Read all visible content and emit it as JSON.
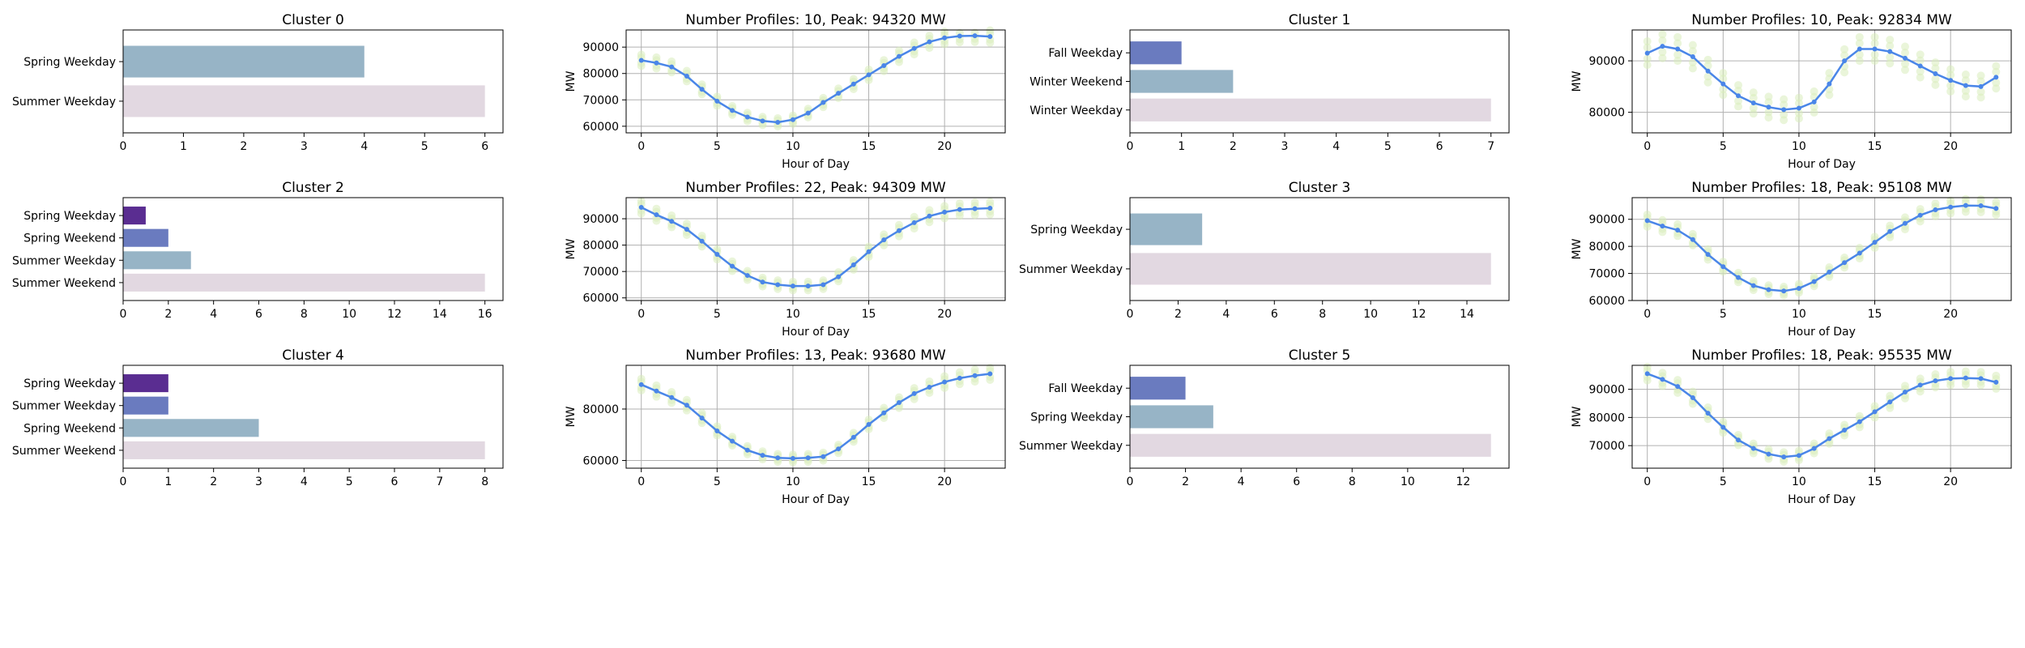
{
  "colors": {
    "bar": [
      "#5a2d91",
      "#6a7bbf",
      "#97b4c6",
      "#e2d8e1"
    ],
    "line": "#4a86e8",
    "scatter": "#d8ecbc",
    "grid": "#b0b0b0",
    "axis": "#000000"
  },
  "chart_data": [
    {
      "type": "bar",
      "orientation": "horizontal",
      "title": "Cluster 0",
      "categories": [
        "Spring Weekday",
        "Summer Weekday"
      ],
      "values": [
        4,
        6
      ],
      "color_index": [
        2,
        3
      ],
      "xlim": [
        0,
        6.3
      ],
      "xticks": [
        0,
        1,
        2,
        3,
        4,
        5,
        6
      ],
      "grid": false
    },
    {
      "type": "line",
      "title": "Number Profiles: 10, Peak: 94320 MW",
      "xlabel": "Hour of Day",
      "ylabel": "MW",
      "x": [
        0,
        1,
        2,
        3,
        4,
        5,
        6,
        7,
        8,
        9,
        10,
        11,
        12,
        13,
        14,
        15,
        16,
        17,
        18,
        19,
        20,
        21,
        22,
        23
      ],
      "y": [
        85000,
        84000,
        82500,
        79000,
        74000,
        69500,
        66000,
        63500,
        62000,
        61500,
        62500,
        65000,
        69000,
        72500,
        76000,
        79500,
        83000,
        86500,
        89500,
        92000,
        93500,
        94200,
        94320,
        94000
      ],
      "xlim": [
        -1,
        24
      ],
      "ylim": [
        57500,
        96500
      ],
      "xticks": [
        0,
        5,
        10,
        15,
        20
      ],
      "yticks": [
        60000,
        70000,
        80000,
        90000
      ],
      "grid": true
    },
    {
      "type": "bar",
      "orientation": "horizontal",
      "title": "Cluster 1",
      "categories": [
        "Fall Weekday",
        "Winter Weekend",
        "Winter Weekday"
      ],
      "values": [
        1,
        2,
        7
      ],
      "color_index": [
        1,
        2,
        3
      ],
      "xlim": [
        0,
        7.35
      ],
      "xticks": [
        0,
        1,
        2,
        3,
        4,
        5,
        6,
        7
      ],
      "grid": false
    },
    {
      "type": "line",
      "title": "Number Profiles: 10, Peak: 92834 MW",
      "xlabel": "Hour of Day",
      "ylabel": "MW",
      "x": [
        0,
        1,
        2,
        3,
        4,
        5,
        6,
        7,
        8,
        9,
        10,
        11,
        12,
        13,
        14,
        15,
        16,
        17,
        18,
        19,
        20,
        21,
        22,
        23
      ],
      "y": [
        91500,
        92834,
        92300,
        90800,
        88000,
        85500,
        83200,
        81800,
        81000,
        80500,
        80800,
        82000,
        85500,
        90000,
        92300,
        92300,
        91800,
        90500,
        89000,
        87500,
        86200,
        85200,
        85000,
        86800
      ],
      "xlim": [
        -1,
        24
      ],
      "ylim": [
        76000,
        96000
      ],
      "xticks": [
        0,
        5,
        10,
        15,
        20
      ],
      "yticks": [
        80000,
        90000
      ],
      "grid": true
    },
    {
      "type": "bar",
      "orientation": "horizontal",
      "title": "Cluster 2",
      "categories": [
        "Spring Weekday",
        "Spring Weekend",
        "Summer Weekday",
        "Summer Weekend"
      ],
      "values": [
        1,
        2,
        3,
        16
      ],
      "color_index": [
        0,
        1,
        2,
        3
      ],
      "xlim": [
        0,
        16.8
      ],
      "xticks": [
        0,
        2,
        4,
        6,
        8,
        10,
        12,
        14,
        16
      ],
      "grid": false
    },
    {
      "type": "line",
      "title": "Number Profiles: 22, Peak: 94309 MW",
      "xlabel": "Hour of Day",
      "ylabel": "MW",
      "x": [
        0,
        1,
        2,
        3,
        4,
        5,
        6,
        7,
        8,
        9,
        10,
        11,
        12,
        13,
        14,
        15,
        16,
        17,
        18,
        19,
        20,
        21,
        22,
        23
      ],
      "y": [
        94309,
        91500,
        89000,
        86000,
        81500,
        76500,
        72000,
        68500,
        66000,
        65000,
        64500,
        64500,
        65000,
        68000,
        72500,
        77500,
        82000,
        85500,
        88500,
        91000,
        92500,
        93500,
        93800,
        94000
      ],
      "xlim": [
        -1,
        24
      ],
      "ylim": [
        59000,
        98000
      ],
      "xticks": [
        0,
        5,
        10,
        15,
        20
      ],
      "yticks": [
        60000,
        70000,
        80000,
        90000
      ],
      "grid": true
    },
    {
      "type": "bar",
      "orientation": "horizontal",
      "title": "Cluster 3",
      "categories": [
        "Spring Weekday",
        "Summer Weekday"
      ],
      "values": [
        3,
        15
      ],
      "color_index": [
        2,
        3
      ],
      "xlim": [
        0,
        15.75
      ],
      "xticks": [
        0,
        2,
        4,
        6,
        8,
        10,
        12,
        14
      ],
      "grid": false
    },
    {
      "type": "line",
      "title": "Number Profiles: 18, Peak: 95108 MW",
      "xlabel": "Hour of Day",
      "ylabel": "MW",
      "x": [
        0,
        1,
        2,
        3,
        4,
        5,
        6,
        7,
        8,
        9,
        10,
        11,
        12,
        13,
        14,
        15,
        16,
        17,
        18,
        19,
        20,
        21,
        22,
        23
      ],
      "y": [
        89500,
        87500,
        86000,
        82500,
        77000,
        72500,
        68500,
        65500,
        64000,
        63500,
        64500,
        67000,
        70500,
        74000,
        77500,
        81500,
        85500,
        88500,
        91500,
        93500,
        94500,
        95108,
        95000,
        94000
      ],
      "xlim": [
        -1,
        24
      ],
      "ylim": [
        60000,
        98000
      ],
      "xticks": [
        0,
        5,
        10,
        15,
        20
      ],
      "yticks": [
        60000,
        70000,
        80000,
        90000
      ],
      "grid": true
    },
    {
      "type": "bar",
      "orientation": "horizontal",
      "title": "Cluster 4",
      "categories": [
        "Spring Weekday",
        "Summer Weekday",
        "Spring Weekend",
        "Summer Weekend"
      ],
      "values": [
        1,
        1,
        3,
        8
      ],
      "color_index": [
        0,
        1,
        2,
        3
      ],
      "xlim": [
        0,
        8.4
      ],
      "xticks": [
        0,
        1,
        2,
        3,
        4,
        5,
        6,
        7,
        8
      ],
      "grid": false
    },
    {
      "type": "line",
      "title": "Number Profiles: 13, Peak: 93680 MW",
      "xlabel": "Hour of Day",
      "ylabel": "MW",
      "x": [
        0,
        1,
        2,
        3,
        4,
        5,
        6,
        7,
        8,
        9,
        10,
        11,
        12,
        13,
        14,
        15,
        16,
        17,
        18,
        19,
        20,
        21,
        22,
        23
      ],
      "y": [
        89500,
        87000,
        84500,
        81500,
        76500,
        71500,
        67500,
        64000,
        62000,
        61000,
        60800,
        61000,
        61500,
        64500,
        69000,
        74000,
        78500,
        82500,
        86000,
        88500,
        90500,
        92000,
        93000,
        93680
      ],
      "xlim": [
        -1,
        24
      ],
      "ylim": [
        57000,
        97000
      ],
      "xticks": [
        0,
        5,
        10,
        15,
        20
      ],
      "yticks": [
        60000,
        80000
      ],
      "grid": true
    },
    {
      "type": "bar",
      "orientation": "horizontal",
      "title": "Cluster 5",
      "categories": [
        "Fall Weekday",
        "Spring Weekday",
        "Summer Weekday"
      ],
      "values": [
        2,
        3,
        13
      ],
      "color_index": [
        1,
        2,
        3
      ],
      "xlim": [
        0,
        13.65
      ],
      "xticks": [
        0,
        2,
        4,
        6,
        8,
        10,
        12
      ],
      "grid": false
    },
    {
      "type": "line",
      "title": "Number Profiles: 18, Peak: 95535 MW",
      "xlabel": "Hour of Day",
      "ylabel": "MW",
      "x": [
        0,
        1,
        2,
        3,
        4,
        5,
        6,
        7,
        8,
        9,
        10,
        11,
        12,
        13,
        14,
        15,
        16,
        17,
        18,
        19,
        20,
        21,
        22,
        23
      ],
      "y": [
        95535,
        93500,
        91000,
        87000,
        81500,
        76500,
        72000,
        69000,
        67000,
        66000,
        66500,
        69000,
        72500,
        75500,
        78500,
        82000,
        85500,
        89000,
        91500,
        93000,
        93800,
        94000,
        93800,
        92500
      ],
      "xlim": [
        -1,
        24
      ],
      "ylim": [
        62000,
        98500
      ],
      "xticks": [
        0,
        5,
        10,
        15,
        20
      ],
      "yticks": [
        70000,
        80000,
        90000
      ],
      "grid": true
    }
  ]
}
